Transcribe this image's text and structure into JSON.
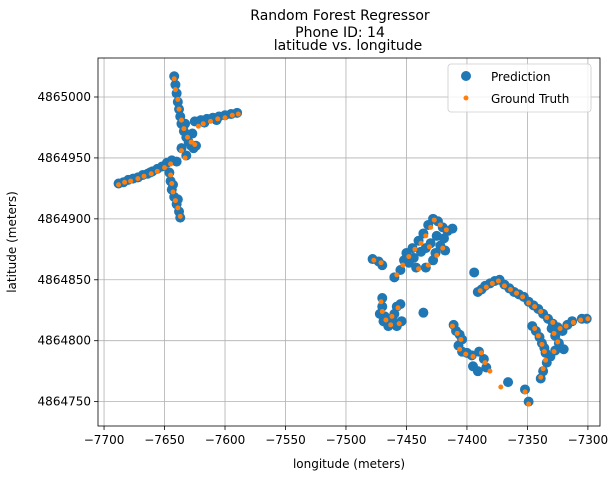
{
  "chart_data": {
    "type": "scatter",
    "title_line1": "Random Forest Regressor",
    "title_line2": "Phone ID: 14",
    "subtitle": "latitude vs. longitude",
    "xlabel": "longitude (meters)",
    "ylabel": "latitude (meters)",
    "xlim": [
      -7705,
      -7290
    ],
    "ylim": [
      4864730,
      4865032
    ],
    "xticks": [
      -7700,
      -7650,
      -7600,
      -7550,
      -7500,
      -7450,
      -7400,
      -7350,
      -7300
    ],
    "yticks": [
      4864750,
      4864800,
      4864850,
      4864900,
      4864950,
      4865000
    ],
    "grid": true,
    "legend_position": "top-right",
    "colors": {
      "prediction": "#1f77b4",
      "ground_truth": "#ff7f0e"
    },
    "series": [
      {
        "name": "Prediction",
        "marker": "large-circle",
        "points": [
          [
            -7642,
            4865017
          ],
          [
            -7641,
            4865010
          ],
          [
            -7640,
            4865003
          ],
          [
            -7639,
            4864996
          ],
          [
            -7638,
            4864990
          ],
          [
            -7637,
            4864984
          ],
          [
            -7636,
            4864978
          ],
          [
            -7634,
            4864972
          ],
          [
            -7632,
            4864967
          ],
          [
            -7630,
            4864963
          ],
          [
            -7628,
            4864960
          ],
          [
            -7626,
            4864958
          ],
          [
            -7624,
            4864960
          ],
          [
            -7627,
            4864970
          ],
          [
            -7633,
            4864978
          ],
          [
            -7625,
            4864980
          ],
          [
            -7620,
            4864981
          ],
          [
            -7615,
            4864982
          ],
          [
            -7610,
            4864983
          ],
          [
            -7605,
            4864984
          ],
          [
            -7600,
            4864985
          ],
          [
            -7595,
            4864986
          ],
          [
            -7590,
            4864987
          ],
          [
            -7617,
            4864979
          ],
          [
            -7607,
            4864981
          ],
          [
            -7632,
            4864952
          ],
          [
            -7636,
            4864958
          ],
          [
            -7688,
            4864929
          ],
          [
            -7684,
            4864930
          ],
          [
            -7680,
            4864932
          ],
          [
            -7676,
            4864933
          ],
          [
            -7672,
            4864934
          ],
          [
            -7668,
            4864936
          ],
          [
            -7664,
            4864937
          ],
          [
            -7660,
            4864939
          ],
          [
            -7656,
            4864941
          ],
          [
            -7652,
            4864943
          ],
          [
            -7648,
            4864946
          ],
          [
            -7644,
            4864948
          ],
          [
            -7640,
            4864947
          ],
          [
            -7662,
            4864938
          ],
          [
            -7646,
            4864938
          ],
          [
            -7645,
            4864931
          ],
          [
            -7644,
            4864924
          ],
          [
            -7642,
            4864918
          ],
          [
            -7640,
            4864912
          ],
          [
            -7638,
            4864906
          ],
          [
            -7637,
            4864901
          ],
          [
            -7643,
            4864928
          ],
          [
            -7639,
            4864916
          ],
          [
            -7478,
            4864867
          ],
          [
            -7473,
            4864865
          ],
          [
            -7470,
            4864862
          ],
          [
            -7460,
            4864852
          ],
          [
            -7455,
            4864858
          ],
          [
            -7452,
            4864866
          ],
          [
            -7450,
            4864872
          ],
          [
            -7445,
            4864876
          ],
          [
            -7440,
            4864882
          ],
          [
            -7436,
            4864888
          ],
          [
            -7432,
            4864895
          ],
          [
            -7428,
            4864900
          ],
          [
            -7424,
            4864898
          ],
          [
            -7420,
            4864893
          ],
          [
            -7416,
            4864890
          ],
          [
            -7412,
            4864892
          ],
          [
            -7444,
            4864868
          ],
          [
            -7438,
            4864873
          ],
          [
            -7434,
            4864876
          ],
          [
            -7430,
            4864880
          ],
          [
            -7426,
            4864872
          ],
          [
            -7422,
            4864878
          ],
          [
            -7418,
            4864874
          ],
          [
            -7428,
            4864866
          ],
          [
            -7434,
            4864860
          ],
          [
            -7442,
            4864860
          ],
          [
            -7448,
            4864864
          ],
          [
            -7425,
            4864886
          ],
          [
            -7419,
            4864884
          ],
          [
            -7470,
            4864835
          ],
          [
            -7470,
            4864828
          ],
          [
            -7472,
            4864822
          ],
          [
            -7469,
            4864816
          ],
          [
            -7465,
            4864812
          ],
          [
            -7463,
            4864818
          ],
          [
            -7460,
            4864822
          ],
          [
            -7458,
            4864828
          ],
          [
            -7455,
            4864830
          ],
          [
            -7460,
            4864815
          ],
          [
            -7454,
            4864816
          ],
          [
            -7468,
            4864820
          ],
          [
            -7458,
            4864812
          ],
          [
            -7436,
            4864823
          ],
          [
            -7411,
            4864813
          ],
          [
            -7409,
            4864808
          ],
          [
            -7406,
            4864805
          ],
          [
            -7404,
            4864801
          ],
          [
            -7407,
            4864796
          ],
          [
            -7404,
            4864791
          ],
          [
            -7400,
            4864790
          ],
          [
            -7396,
            4864788
          ],
          [
            -7390,
            4864791
          ],
          [
            -7386,
            4864785
          ],
          [
            -7384,
            4864778
          ],
          [
            -7395,
            4864779
          ],
          [
            -7391,
            4864775
          ],
          [
            -7366,
            4864766
          ],
          [
            -7352,
            4864760
          ],
          [
            -7349,
            4864750
          ],
          [
            -7394,
            4864856
          ],
          [
            -7391,
            4864840
          ],
          [
            -7388,
            4864842
          ],
          [
            -7385,
            4864845
          ],
          [
            -7381,
            4864847
          ],
          [
            -7377,
            4864849
          ],
          [
            -7373,
            4864850
          ],
          [
            -7369,
            4864846
          ],
          [
            -7365,
            4864843
          ],
          [
            -7361,
            4864840
          ],
          [
            -7357,
            4864838
          ],
          [
            -7353,
            4864836
          ],
          [
            -7349,
            4864832
          ],
          [
            -7345,
            4864829
          ],
          [
            -7341,
            4864826
          ],
          [
            -7337,
            4864822
          ],
          [
            -7333,
            4864818
          ],
          [
            -7329,
            4864814
          ],
          [
            -7325,
            4864811
          ],
          [
            -7321,
            4864808
          ],
          [
            -7317,
            4864813
          ],
          [
            -7313,
            4864816
          ],
          [
            -7305,
            4864818
          ],
          [
            -7301,
            4864818
          ],
          [
            -7346,
            4864812
          ],
          [
            -7343,
            4864808
          ],
          [
            -7340,
            4864803
          ],
          [
            -7338,
            4864798
          ],
          [
            -7336,
            4864794
          ],
          [
            -7335,
            4864790
          ],
          [
            -7334,
            4864782
          ],
          [
            -7337,
            4864775
          ],
          [
            -7339,
            4864769
          ],
          [
            -7330,
            4864810
          ],
          [
            -7327,
            4864804
          ],
          [
            -7324,
            4864798
          ],
          [
            -7327,
            4864792
          ],
          [
            -7331,
            4864787
          ],
          [
            -7320,
            4864793
          ]
        ]
      },
      {
        "name": "Ground Truth",
        "marker": "small-dot",
        "points": [
          [
            -7642,
            4865015
          ],
          [
            -7641,
            4865006
          ],
          [
            -7639,
            4864998
          ],
          [
            -7638,
            4864990
          ],
          [
            -7636,
            4864981
          ],
          [
            -7634,
            4864974
          ],
          [
            -7631,
            4864967
          ],
          [
            -7628,
            4864963
          ],
          [
            -7625,
            4864961
          ],
          [
            -7622,
            4864976
          ],
          [
            -7618,
            4864978
          ],
          [
            -7612,
            4864980
          ],
          [
            -7606,
            4864982
          ],
          [
            -7600,
            4864983
          ],
          [
            -7594,
            4864985
          ],
          [
            -7589,
            4864986
          ],
          [
            -7633,
            4864950
          ],
          [
            -7636,
            4864956
          ],
          [
            -7688,
            4864928
          ],
          [
            -7683,
            4864930
          ],
          [
            -7678,
            4864931
          ],
          [
            -7672,
            4864933
          ],
          [
            -7667,
            4864935
          ],
          [
            -7661,
            4864937
          ],
          [
            -7656,
            4864939
          ],
          [
            -7650,
            4864942
          ],
          [
            -7645,
            4864945
          ],
          [
            -7645,
            4864936
          ],
          [
            -7644,
            4864929
          ],
          [
            -7643,
            4864922
          ],
          [
            -7641,
            4864915
          ],
          [
            -7639,
            4864909
          ],
          [
            -7637,
            4864902
          ],
          [
            -7477,
            4864866
          ],
          [
            -7471,
            4864864
          ],
          [
            -7458,
            4864854
          ],
          [
            -7453,
            4864862
          ],
          [
            -7448,
            4864869
          ],
          [
            -7443,
            4864875
          ],
          [
            -7438,
            4864880
          ],
          [
            -7434,
            4864886
          ],
          [
            -7430,
            4864893
          ],
          [
            -7427,
            4864899
          ],
          [
            -7422,
            4864895
          ],
          [
            -7417,
            4864891
          ],
          [
            -7431,
            4864877
          ],
          [
            -7425,
            4864870
          ],
          [
            -7420,
            4864876
          ],
          [
            -7432,
            4864862
          ],
          [
            -7440,
            4864859
          ],
          [
            -7471,
            4864832
          ],
          [
            -7470,
            4864824
          ],
          [
            -7467,
            4864817
          ],
          [
            -7462,
            4864820
          ],
          [
            -7457,
            4864827
          ],
          [
            -7456,
            4864814
          ],
          [
            -7463,
            4864813
          ],
          [
            -7412,
            4864812
          ],
          [
            -7408,
            4864806
          ],
          [
            -7405,
            4864801
          ],
          [
            -7406,
            4864793
          ],
          [
            -7401,
            4864789
          ],
          [
            -7395,
            4864787
          ],
          [
            -7388,
            4864790
          ],
          [
            -7385,
            4864782
          ],
          [
            -7381,
            4864775
          ],
          [
            -7372,
            4864762
          ],
          [
            -7349,
            4864748
          ],
          [
            -7352,
            4864758
          ],
          [
            -7389,
            4864841
          ],
          [
            -7384,
            4864844
          ],
          [
            -7379,
            4864847
          ],
          [
            -7374,
            4864849
          ],
          [
            -7369,
            4864845
          ],
          [
            -7364,
            4864842
          ],
          [
            -7359,
            4864839
          ],
          [
            -7354,
            4864836
          ],
          [
            -7349,
            4864831
          ],
          [
            -7344,
            4864828
          ],
          [
            -7339,
            4864824
          ],
          [
            -7334,
            4864819
          ],
          [
            -7329,
            4864815
          ],
          [
            -7323,
            4864810
          ],
          [
            -7318,
            4864812
          ],
          [
            -7312,
            4864815
          ],
          [
            -7306,
            4864817
          ],
          [
            -7300,
            4864818
          ],
          [
            -7344,
            4864810
          ],
          [
            -7341,
            4864804
          ],
          [
            -7338,
            4864797
          ],
          [
            -7336,
            4864791
          ],
          [
            -7335,
            4864784
          ],
          [
            -7337,
            4864777
          ],
          [
            -7339,
            4864770
          ],
          [
            -7328,
            4864806
          ],
          [
            -7325,
            4864799
          ],
          [
            -7328,
            4864791
          ]
        ]
      }
    ]
  }
}
